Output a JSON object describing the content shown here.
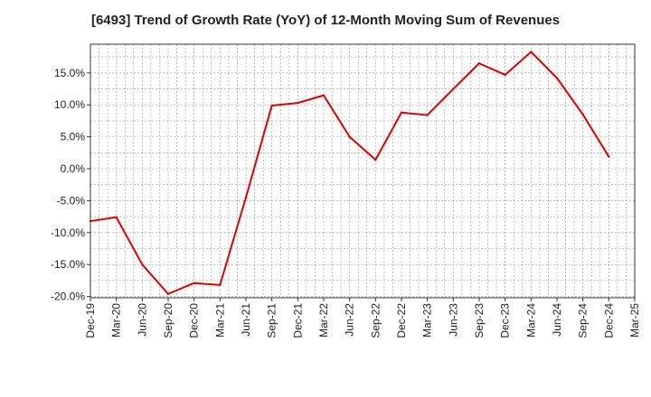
{
  "chart_data": {
    "type": "line",
    "title": "[6493]  Trend of Growth Rate (YoY) of 12-Month Moving Sum of Revenues",
    "xlabel": "",
    "ylabel": "",
    "x_ticks": [
      "Dec-19",
      "Mar-20",
      "Jun-20",
      "Sep-20",
      "Dec-20",
      "Mar-21",
      "Jun-21",
      "Sep-21",
      "Dec-21",
      "Mar-22",
      "Jun-22",
      "Sep-22",
      "Dec-22",
      "Mar-23",
      "Jun-23",
      "Sep-23",
      "Dec-23",
      "Mar-24",
      "Jun-24",
      "Sep-24",
      "Dec-24",
      "Mar-25"
    ],
    "y_ticks": [
      "15.0%",
      "10.0%",
      "5.0%",
      "0.0%",
      "-5.0%",
      "-10.0%",
      "-15.0%",
      "-20.0%"
    ],
    "y_tick_values": [
      15,
      10,
      5,
      0,
      -5,
      -10,
      -15,
      -20
    ],
    "ylim": [
      -20.2,
      19.5
    ],
    "grid": true,
    "series": [
      {
        "color": "#e00000",
        "x": [
          "Dec-19",
          "Mar-20",
          "Jun-20",
          "Sep-20",
          "Dec-20",
          "Mar-21",
          "Jun-21",
          "Sep-21",
          "Dec-21",
          "Mar-22",
          "Jun-22",
          "Sep-22",
          "Dec-22",
          "Mar-23",
          "Jun-23",
          "Sep-23",
          "Dec-23",
          "Mar-24",
          "Jun-24",
          "Sep-24",
          "Dec-24"
        ],
        "values": [
          -8.2,
          -7.6,
          -15.0,
          -19.6,
          -17.9,
          -18.2,
          -4.5,
          9.9,
          10.3,
          11.5,
          5.0,
          1.4,
          8.8,
          8.4,
          12.5,
          16.5,
          14.7,
          18.3,
          14.2,
          8.5,
          1.9
        ]
      }
    ]
  }
}
